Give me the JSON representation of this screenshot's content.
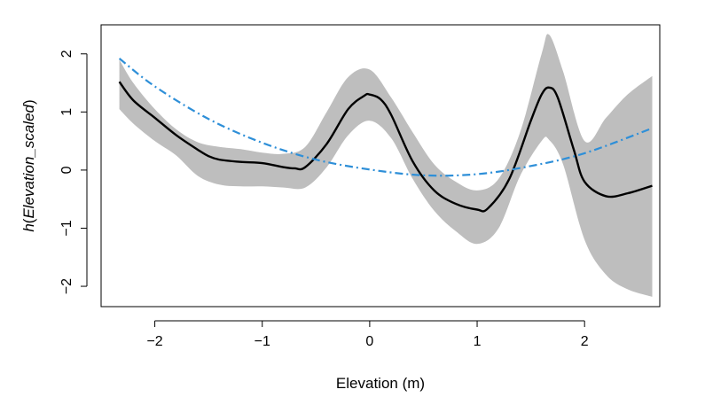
{
  "chart_data": {
    "type": "line",
    "title": "",
    "xlabel": "Elevation (m)",
    "ylabel_italic": "h",
    "ylabel_inner": "Elevation_scaled",
    "xlim": [
      -2.5,
      2.7
    ],
    "ylim": [
      -2.35,
      2.5
    ],
    "x_ticks": [
      -2,
      -1,
      0,
      1,
      2
    ],
    "x_tick_labels": [
      "−2",
      "−1",
      "0",
      "1",
      "2"
    ],
    "y_ticks": [
      -2,
      -1,
      0,
      1,
      2
    ],
    "y_tick_labels": [
      "−2",
      "−1",
      "0",
      "1",
      "2"
    ],
    "grid": false,
    "band": {
      "fill_color": "#bebebe",
      "x": [
        -2.33,
        -2.2,
        -2.0,
        -1.8,
        -1.6,
        -1.4,
        -1.2,
        -1.0,
        -0.8,
        -0.6,
        -0.4,
        -0.2,
        0.0,
        0.2,
        0.4,
        0.6,
        0.8,
        1.0,
        1.2,
        1.4,
        1.6,
        1.67,
        1.8,
        2.0,
        2.2,
        2.4,
        2.63
      ],
      "upper": [
        1.9,
        1.5,
        1.05,
        0.7,
        0.48,
        0.4,
        0.36,
        0.3,
        0.28,
        0.4,
        1.0,
        1.6,
        1.73,
        1.25,
        0.65,
        0.1,
        -0.2,
        -0.35,
        -0.15,
        0.65,
        2.0,
        2.33,
        1.7,
        0.5,
        0.9,
        1.3,
        1.62
      ],
      "lower": [
        1.05,
        0.8,
        0.5,
        0.25,
        -0.1,
        -0.25,
        -0.28,
        -0.28,
        -0.3,
        -0.3,
        0.05,
        0.6,
        0.85,
        0.55,
        -0.15,
        -0.7,
        -1.05,
        -1.27,
        -1.0,
        -0.1,
        0.5,
        0.52,
        0.1,
        -1.2,
        -1.8,
        -2.05,
        -2.18
      ]
    },
    "series": [
      {
        "color": "#000000",
        "style": "solid",
        "x": [
          -2.33,
          -2.2,
          -2.0,
          -1.8,
          -1.6,
          -1.5,
          -1.4,
          -1.2,
          -1.0,
          -0.8,
          -0.7,
          -0.6,
          -0.4,
          -0.2,
          -0.05,
          0.0,
          0.1,
          0.2,
          0.4,
          0.6,
          0.8,
          1.0,
          1.1,
          1.3,
          1.5,
          1.6,
          1.67,
          1.75,
          1.9,
          2.0,
          2.2,
          2.4,
          2.63
        ],
        "y": [
          1.52,
          1.2,
          0.9,
          0.6,
          0.35,
          0.24,
          0.18,
          0.14,
          0.12,
          0.05,
          0.03,
          0.05,
          0.45,
          1.05,
          1.28,
          1.3,
          1.22,
          0.95,
          0.15,
          -0.35,
          -0.58,
          -0.68,
          -0.66,
          -0.15,
          0.85,
          1.3,
          1.42,
          1.25,
          0.35,
          -0.2,
          -0.45,
          -0.4,
          -0.27
        ]
      },
      {
        "color": "#2e8fd8",
        "style": "dash-dot",
        "x": [
          -2.33,
          -2.0,
          -1.5,
          -1.0,
          -0.5,
          0.0,
          0.5,
          1.0,
          1.5,
          2.0,
          2.63
        ],
        "y": [
          1.92,
          1.44,
          0.88,
          0.47,
          0.18,
          0.01,
          -0.09,
          -0.07,
          0.07,
          0.29,
          0.72
        ]
      }
    ]
  }
}
